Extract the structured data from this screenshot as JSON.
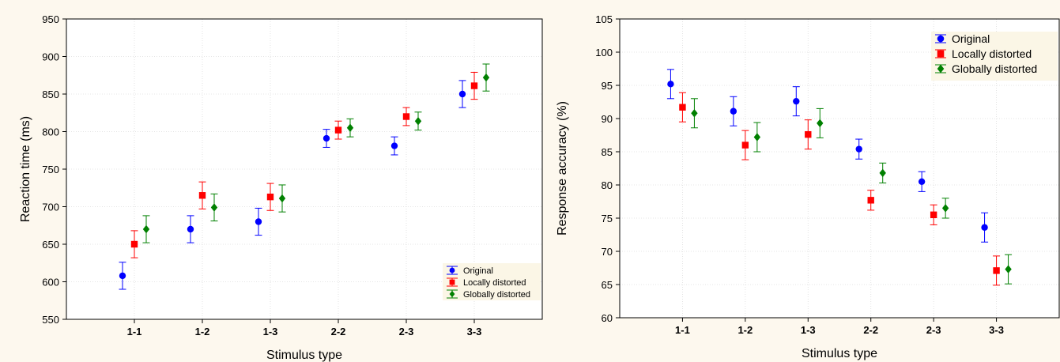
{
  "colors": {
    "background": "#fdf8ee",
    "plot_area": "#ffffff",
    "legend_box": "#fbf6e6",
    "grid": "#dddddd",
    "original": "#0000ff",
    "locally_distorted": "#ff0000",
    "globally_distorted": "#008000"
  },
  "chart_data": [
    {
      "type": "scatter",
      "subtype": "means-with-error-bars",
      "xlabel": "Stimulus type",
      "ylabel": "Reaction time (ms)",
      "categories": [
        "1-1",
        "1-2",
        "1-3",
        "2-2",
        "2-3",
        "3-3"
      ],
      "yticks": [
        "550",
        "600",
        "650",
        "700",
        "750",
        "800",
        "850",
        "900",
        "950"
      ],
      "ylim": [
        550,
        950
      ],
      "grid": true,
      "legend_position": "bottom-right",
      "series": [
        {
          "name": "Original",
          "marker": "circle",
          "color": "#0000ff",
          "values": [
            608,
            670,
            680,
            791,
            781,
            850
          ],
          "errors": [
            18,
            18,
            18,
            12,
            12,
            18
          ]
        },
        {
          "name": "Locally distorted",
          "marker": "square",
          "color": "#ff0000",
          "values": [
            650,
            715,
            713,
            802,
            820,
            861
          ],
          "errors": [
            18,
            18,
            18,
            12,
            12,
            18
          ]
        },
        {
          "name": "Globally distorted",
          "marker": "diamond",
          "color": "#008000",
          "values": [
            670,
            699,
            711,
            805,
            814,
            872
          ],
          "errors": [
            18,
            18,
            18,
            12,
            12,
            18
          ]
        }
      ]
    },
    {
      "type": "scatter",
      "subtype": "means-with-error-bars",
      "xlabel": "Stimulus type",
      "ylabel": "Response accuracy (%)",
      "categories": [
        "1-1",
        "1-2",
        "1-3",
        "2-2",
        "2-3",
        "3-3"
      ],
      "yticks": [
        "60",
        "65",
        "70",
        "75",
        "80",
        "85",
        "90",
        "95",
        "100",
        "105"
      ],
      "ylim": [
        60,
        105
      ],
      "grid": true,
      "legend_position": "top-right",
      "series": [
        {
          "name": "Original",
          "marker": "circle",
          "color": "#0000ff",
          "values": [
            95.2,
            91.1,
            92.6,
            85.4,
            80.5,
            73.6
          ],
          "errors": [
            2.2,
            2.2,
            2.2,
            1.5,
            1.5,
            2.2
          ]
        },
        {
          "name": "Locally distorted",
          "marker": "square",
          "color": "#ff0000",
          "values": [
            91.7,
            86.0,
            87.6,
            77.7,
            75.5,
            67.1
          ],
          "errors": [
            2.2,
            2.2,
            2.2,
            1.5,
            1.5,
            2.2
          ]
        },
        {
          "name": "Globally distorted",
          "marker": "diamond",
          "color": "#008000",
          "values": [
            90.8,
            87.2,
            89.3,
            81.8,
            76.5,
            67.3
          ],
          "errors": [
            2.2,
            2.2,
            2.2,
            1.5,
            1.5,
            2.2
          ]
        }
      ]
    }
  ]
}
